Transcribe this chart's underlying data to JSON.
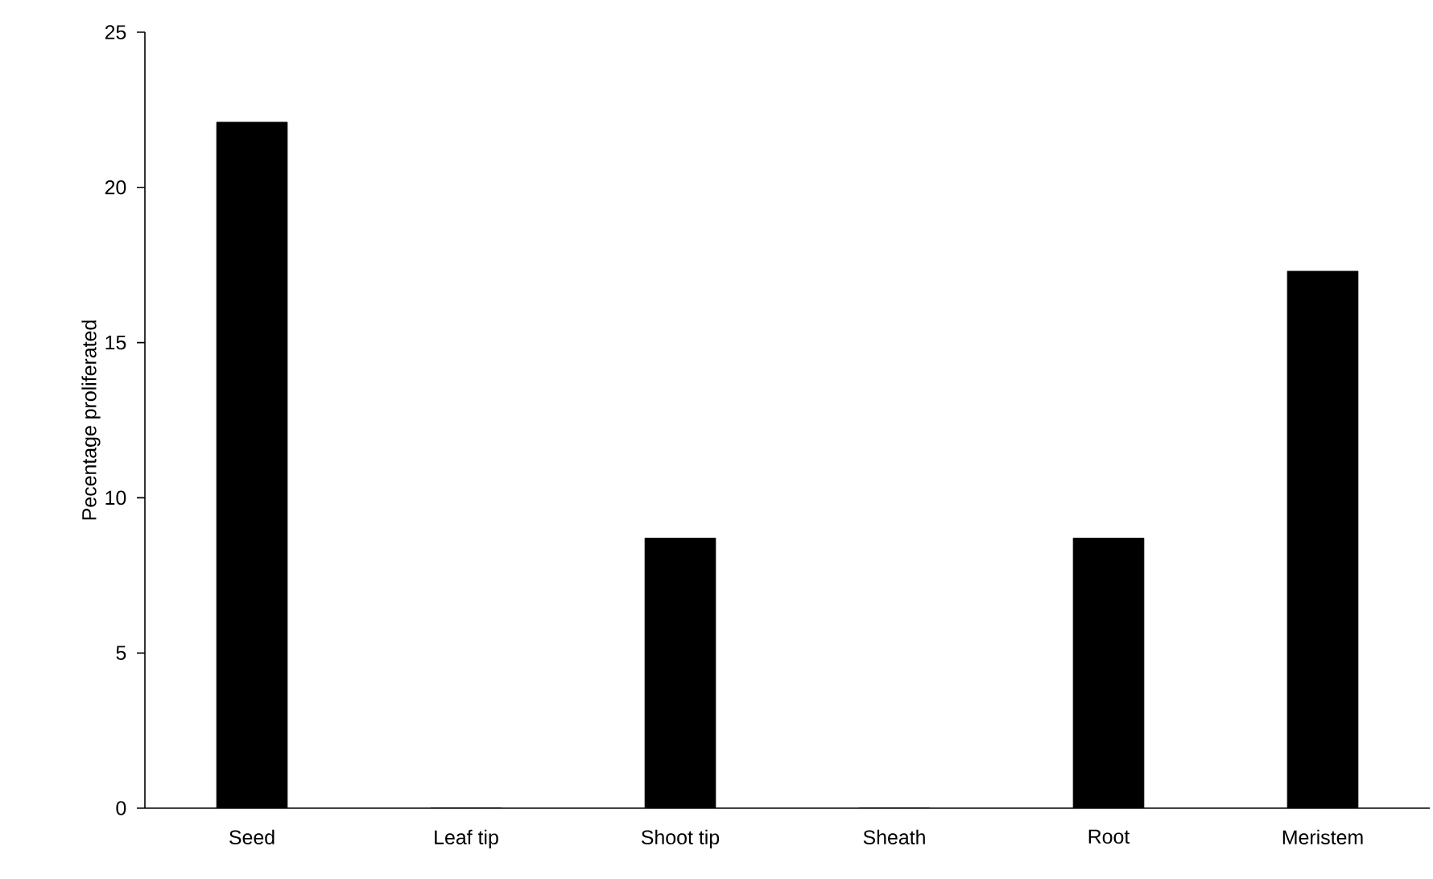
{
  "chart_data": {
    "type": "bar",
    "ylabel": "Pecentage proliferated",
    "categories": [
      "Seed",
      "Leaf tip",
      "Shoot tip",
      "Sheath",
      "Root",
      "Meristem"
    ],
    "values": [
      22.1,
      0,
      8.7,
      0,
      8.7,
      17.3
    ],
    "color": "#000000",
    "ylim": [
      0,
      25
    ],
    "yticks": [
      0,
      5,
      10,
      15,
      20,
      25
    ],
    "grid": false
  }
}
